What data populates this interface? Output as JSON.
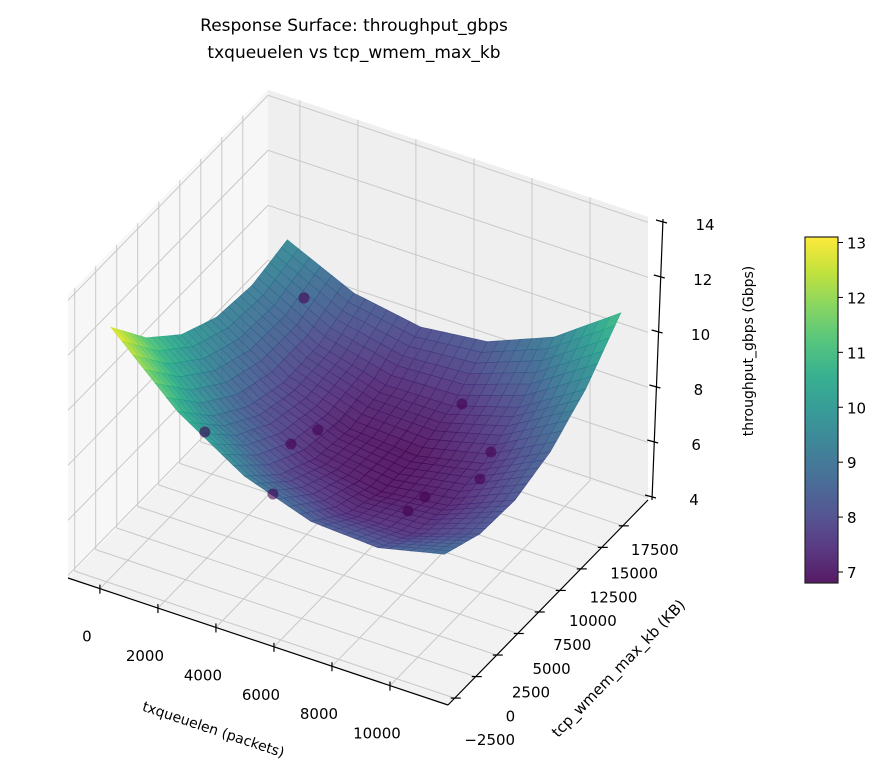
{
  "chart_data": {
    "type": "surface3d",
    "title": [
      "Response Surface: throughput_gbps",
      "txqueuelen vs tcp_wmem_max_kb"
    ],
    "xlabel": "txqueuelen (packets)",
    "ylabel": "tcp_wmem_max_kb (KB)",
    "zlabel": "throughput_gbps (Gbps)",
    "xlim": [
      -1100,
      12000
    ],
    "ylim": [
      -3300,
      20500
    ],
    "zlim": [
      3.9,
      14.2
    ],
    "xticks": [
      "0",
      "2000",
      "4000",
      "6000",
      "8000",
      "10000"
    ],
    "yticks": [
      "−2500",
      "0",
      "2500",
      "5000",
      "7500",
      "10000",
      "12500",
      "15000",
      "17500"
    ],
    "zticks": [
      "4",
      "6",
      "8",
      "10",
      "12",
      "14"
    ],
    "grid": true,
    "colormap": "viridis",
    "colorbar": {
      "vmin": 6.8,
      "vmax": 13.1,
      "ticks": [
        "7",
        "8",
        "9",
        "10",
        "11",
        "12",
        "13"
      ]
    },
    "surface": {
      "x": [
        0,
        2300,
        4600,
        6900,
        9200,
        11500
      ],
      "y": [
        -2000,
        2200,
        6400,
        10600,
        14800,
        19000
      ],
      "z": [
        [
          13.0,
          10.75,
          9.21,
          8.37,
          8.23,
          8.8
        ],
        [
          11.3,
          9.27,
          7.95,
          7.34,
          7.42,
          8.22
        ],
        [
          10.1,
          8.3,
          7.21,
          6.82,
          7.13,
          8.14
        ],
        [
          9.42,
          7.85,
          6.98,
          6.81,
          7.34,
          8.58
        ],
        [
          9.26,
          7.9,
          7.26,
          7.31,
          8.07,
          9.54
        ],
        [
          9.6,
          8.47,
          8.05,
          8.33,
          9.31,
          11.0
        ]
      ]
    },
    "points": [
      {
        "x": 2190,
        "y": 13430,
        "z": 10.0
      },
      {
        "x": 2660,
        "y": 0,
        "z": 9.5
      },
      {
        "x": 3810,
        "y": 6290,
        "z": 7.5
      },
      {
        "x": 4150,
        "y": 8300,
        "z": 7.5
      },
      {
        "x": 4610,
        "y": 1385,
        "z": 7.5
      },
      {
        "x": 7240,
        "y": 14790,
        "z": 7.5
      },
      {
        "x": 9210,
        "y": 11440,
        "z": 7.5
      },
      {
        "x": 9610,
        "y": 8750,
        "z": 7.5
      },
      {
        "x": 8635,
        "y": 5570,
        "z": 7.5
      },
      {
        "x": 8550,
        "y": 3850,
        "z": 7.5
      }
    ]
  }
}
